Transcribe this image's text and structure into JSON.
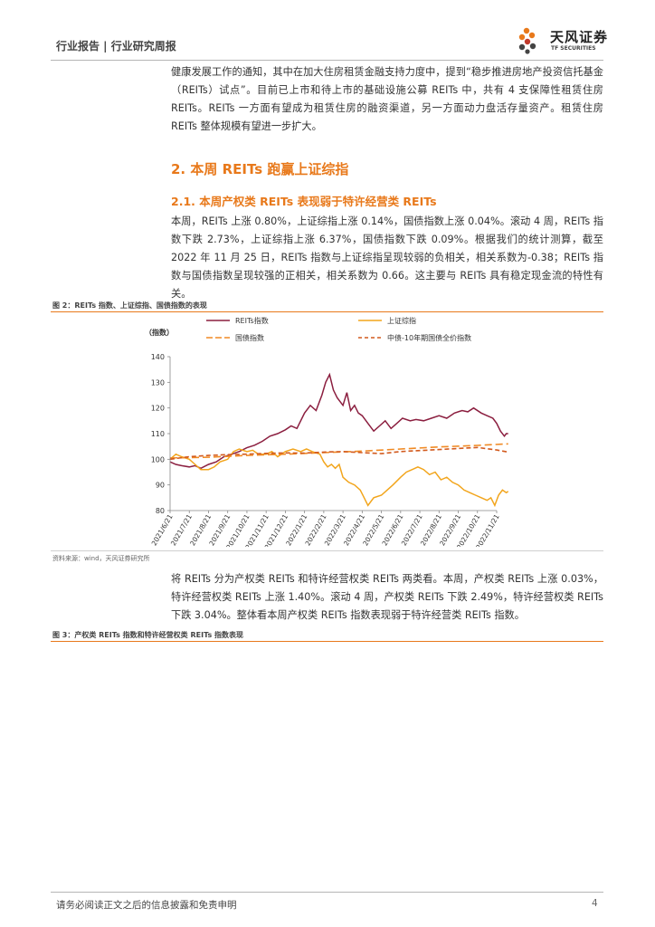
{
  "header": {
    "category": "行业报告 | 行业研究周报",
    "logo_cn": "天风证券",
    "logo_en": "TF SECURITIES"
  },
  "intro_paragraph": "健康发展工作的通知，其中在加大住房租赁金融支持力度中，提到“稳步推进房地产投资信托基金（REITs）试点”。目前已上市和待上市的基础设施公募 REITs 中，共有 4 支保障性租赁住房 REITs。REITs 一方面有望成为租赁住房的融资渠道，另一方面动力盘活存量资产。租赁住房 REITs 整体规模有望进一步扩大。",
  "section2_title": "2. 本周 REITs 跑赢上证综指",
  "section21_title": "2.1. 本周产权类 REITs 表现弱于特许经营类 REITs",
  "para1": "本周，REITs 上涨 0.80%，上证综指上涨 0.14%，国债指数上涨 0.04%。滚动 4 周，REITs 指数下跌 2.73%，上证综指上涨 6.37%，国债指数下跌 0.09%。根据我们的统计测算，截至 2022 年 11 月 25 日，REITs 指数与上证综指呈现较弱的负相关，相关系数为-0.38；REITs 指数与国债指数呈现较强的正相关，相关系数为 0.66。这主要与 REITs 具有稳定现金流的特性有关。",
  "figure2_title": "图 2：REITs 指数、上证综指、国债指数的表现",
  "figure2_source": "资料来源：wind，天风证券研究所",
  "para2": "将 REITs 分为产权类 REITs 和特许经营权类 REITs 两类看。本周，产权类 REITs 上涨 0.03%，特许经营权类 REITs 上涨 1.40%。滚动 4 周，产权类 REITs 下跌 2.49%，特许经营权类 REITs 下跌 3.04%。整体看本周产权类 REITs 指数表现弱于特许经营类 REITs 指数。",
  "figure3_title": "图 3：产权类 REITs 指数和特许经营权类 REITs 指数表现",
  "footer": {
    "disclaimer": "请务必阅读正文之后的信息披露和免责申明",
    "page": "4"
  },
  "colors": {
    "accent": "#e8791b",
    "reits": "#8b1e3f",
    "sse": "#f2a51c",
    "bond": "#f08a24",
    "zz10": "#d25a1e"
  },
  "chart_data": {
    "type": "line",
    "ylabel": "（指数）",
    "ylim": [
      80,
      140
    ],
    "yticks": [
      80,
      90,
      100,
      110,
      120,
      130,
      140
    ],
    "categories": [
      "2021/6/21",
      "2021/7/21",
      "2021/8/21",
      "2021/9/21",
      "2021/10/21",
      "2021/11/21",
      "2021/12/21",
      "2022/1/21",
      "2022/2/21",
      "2022/3/21",
      "2022/4/21",
      "2022/5/21",
      "2022/6/21",
      "2022/7/21",
      "2022/8/21",
      "2022/9/21",
      "2022/10/21",
      "2022/11/21"
    ],
    "legend": [
      "REITs指数",
      "上证综指",
      "国债指数",
      "中债-10年期国债全价指数"
    ],
    "series": [
      {
        "name": "REITs指数",
        "style": "solid",
        "values": [
          [
            0,
            99
          ],
          [
            0.3,
            98
          ],
          [
            0.6,
            97.5
          ],
          [
            1,
            97
          ],
          [
            1.3,
            97.5
          ],
          [
            1.6,
            96.5
          ],
          [
            2,
            98
          ],
          [
            2.4,
            99
          ],
          [
            2.8,
            101
          ],
          [
            3.2,
            102
          ],
          [
            3.6,
            103
          ],
          [
            4,
            104.5
          ],
          [
            4.4,
            105.5
          ],
          [
            4.8,
            107
          ],
          [
            5.2,
            109
          ],
          [
            5.6,
            110
          ],
          [
            6,
            111.5
          ],
          [
            6.3,
            113
          ],
          [
            6.6,
            112
          ],
          [
            7,
            118
          ],
          [
            7.3,
            121
          ],
          [
            7.6,
            119
          ],
          [
            7.9,
            125
          ],
          [
            8.1,
            130
          ],
          [
            8.3,
            133
          ],
          [
            8.5,
            127
          ],
          [
            8.7,
            124
          ],
          [
            9,
            121
          ],
          [
            9.2,
            126
          ],
          [
            9.4,
            119
          ],
          [
            9.6,
            121
          ],
          [
            9.8,
            118
          ],
          [
            10,
            117
          ],
          [
            10.3,
            114
          ],
          [
            10.6,
            111
          ],
          [
            10.9,
            113
          ],
          [
            11.2,
            115
          ],
          [
            11.5,
            112
          ],
          [
            11.8,
            114
          ],
          [
            12.1,
            116
          ],
          [
            12.5,
            115
          ],
          [
            12.8,
            115.5
          ],
          [
            13.2,
            115
          ],
          [
            13.6,
            116
          ],
          [
            14,
            117
          ],
          [
            14.4,
            116
          ],
          [
            14.8,
            118
          ],
          [
            15.2,
            119
          ],
          [
            15.5,
            118.5
          ],
          [
            15.8,
            120
          ],
          [
            16.2,
            118
          ],
          [
            16.5,
            117
          ],
          [
            16.8,
            116
          ],
          [
            17,
            114
          ],
          [
            17.2,
            111
          ],
          [
            17.4,
            109
          ],
          [
            17.5,
            110
          ],
          [
            17.6,
            110
          ]
        ]
      },
      {
        "name": "上证综指",
        "style": "solid",
        "values": [
          [
            0,
            100
          ],
          [
            0.3,
            102
          ],
          [
            0.6,
            101
          ],
          [
            1,
            100
          ],
          [
            1.3,
            98
          ],
          [
            1.6,
            96
          ],
          [
            2,
            96
          ],
          [
            2.3,
            97
          ],
          [
            2.6,
            99
          ],
          [
            3,
            100
          ],
          [
            3.3,
            103
          ],
          [
            3.6,
            104
          ],
          [
            4,
            103
          ],
          [
            4.3,
            103.5
          ],
          [
            4.6,
            102
          ],
          [
            5,
            102
          ],
          [
            5.3,
            103
          ],
          [
            5.6,
            101
          ],
          [
            6,
            103
          ],
          [
            6.4,
            104
          ],
          [
            6.8,
            103
          ],
          [
            7.1,
            104
          ],
          [
            7.4,
            103
          ],
          [
            7.8,
            102
          ],
          [
            8,
            99
          ],
          [
            8.2,
            97
          ],
          [
            8.4,
            98
          ],
          [
            8.6,
            96.5
          ],
          [
            8.8,
            98
          ],
          [
            9,
            93
          ],
          [
            9.3,
            91
          ],
          [
            9.6,
            90
          ],
          [
            9.9,
            88
          ],
          [
            10.1,
            85
          ],
          [
            10.3,
            82
          ],
          [
            10.6,
            85
          ],
          [
            11,
            86
          ],
          [
            11.3,
            88
          ],
          [
            11.6,
            90
          ],
          [
            12,
            93
          ],
          [
            12.3,
            95
          ],
          [
            12.6,
            96
          ],
          [
            12.9,
            97
          ],
          [
            13.2,
            96
          ],
          [
            13.5,
            94
          ],
          [
            13.8,
            95
          ],
          [
            14.1,
            92
          ],
          [
            14.4,
            93
          ],
          [
            14.7,
            91
          ],
          [
            15,
            90
          ],
          [
            15.3,
            88
          ],
          [
            15.6,
            87
          ],
          [
            15.9,
            86
          ],
          [
            16.2,
            85
          ],
          [
            16.5,
            84
          ],
          [
            16.7,
            85
          ],
          [
            16.9,
            82
          ],
          [
            17.1,
            86
          ],
          [
            17.3,
            88
          ],
          [
            17.5,
            87
          ],
          [
            17.6,
            87.5
          ]
        ]
      },
      {
        "name": "国债指数",
        "style": "dashed",
        "values": [
          [
            0,
            100.5
          ],
          [
            2,
            100.8
          ],
          [
            4,
            101.5
          ],
          [
            6,
            102
          ],
          [
            8,
            102.6
          ],
          [
            10,
            103.2
          ],
          [
            12,
            104
          ],
          [
            14,
            104.8
          ],
          [
            16,
            105.4
          ],
          [
            17.6,
            106
          ]
        ]
      },
      {
        "name": "中债-10年期国债全价指数",
        "style": "dashed",
        "values": [
          [
            0,
            100
          ],
          [
            1,
            101
          ],
          [
            2,
            101.5
          ],
          [
            3,
            101.8
          ],
          [
            4,
            102
          ],
          [
            5,
            102.3
          ],
          [
            6,
            102.5
          ],
          [
            7,
            102.4
          ],
          [
            8,
            102.8
          ],
          [
            9,
            103
          ],
          [
            10,
            102.6
          ],
          [
            11,
            102.2
          ],
          [
            12,
            103
          ],
          [
            13,
            103.4
          ],
          [
            14,
            103.8
          ],
          [
            15,
            104.2
          ],
          [
            16,
            104.6
          ],
          [
            17,
            103.6
          ],
          [
            17.6,
            102.8
          ]
        ]
      }
    ]
  }
}
